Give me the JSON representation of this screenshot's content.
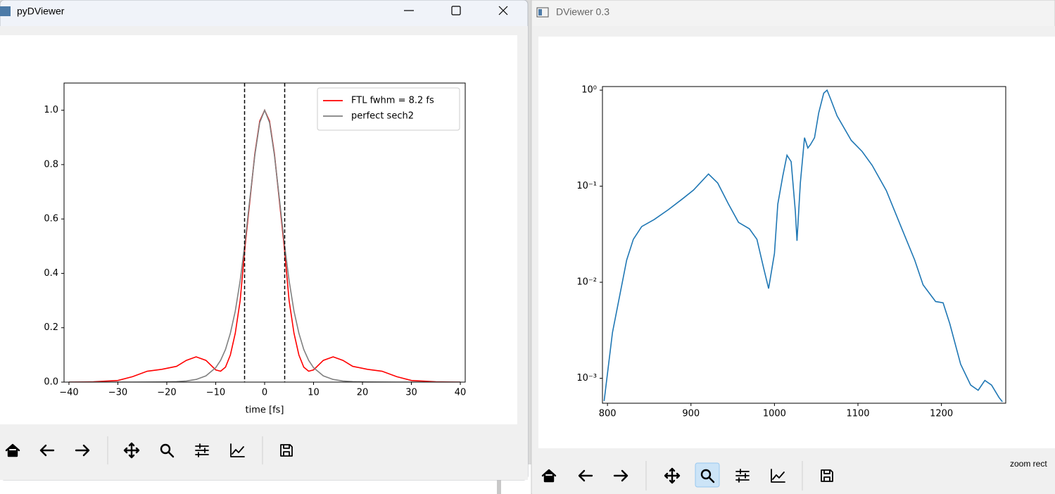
{
  "windows": [
    {
      "title": "pyDViewer"
    },
    {
      "title": "DViewer 0.3",
      "status": "zoom rect"
    }
  ],
  "chart_data": [
    {
      "type": "line",
      "xlabel": "time [fs]",
      "x": [
        -40,
        -35,
        -30,
        -27,
        -24,
        -21,
        -18,
        -16,
        -14,
        -12,
        -10,
        -9,
        -8,
        -7,
        -6,
        -5,
        -4,
        -3,
        -2,
        -1,
        0,
        1,
        2,
        3,
        4,
        5,
        6,
        7,
        8,
        9,
        10,
        12,
        14,
        16,
        18,
        21,
        24,
        27,
        30,
        35,
        40
      ],
      "series": [
        {
          "name": "FTL fwhm = 8.2 fs",
          "color": "#ff0000",
          "values": [
            0,
            0.001,
            0.006,
            0.02,
            0.04,
            0.047,
            0.058,
            0.08,
            0.093,
            0.08,
            0.045,
            0.04,
            0.055,
            0.1,
            0.18,
            0.3,
            0.5,
            0.67,
            0.84,
            0.96,
            1.0,
            0.96,
            0.84,
            0.67,
            0.5,
            0.3,
            0.18,
            0.1,
            0.055,
            0.04,
            0.045,
            0.08,
            0.093,
            0.08,
            0.058,
            0.047,
            0.04,
            0.02,
            0.006,
            0.001,
            0
          ]
        },
        {
          "name": "perfect sech2",
          "color": "#808080",
          "values": [
            0,
            0,
            0,
            0,
            0.0001,
            0.0005,
            0.0018,
            0.004,
            0.0098,
            0.023,
            0.053,
            0.08,
            0.12,
            0.18,
            0.261,
            0.373,
            0.515,
            0.677,
            0.835,
            0.955,
            1.0,
            0.955,
            0.835,
            0.677,
            0.515,
            0.373,
            0.261,
            0.18,
            0.12,
            0.08,
            0.053,
            0.023,
            0.0098,
            0.004,
            0.0018,
            0.0005,
            0.0001,
            0,
            0,
            0,
            0
          ]
        }
      ],
      "vlines": [
        -4.1,
        4.1
      ],
      "xlim": [
        -41,
        41
      ],
      "xticks": [
        {
          "value": -40,
          "label": "−40"
        },
        {
          "value": -30,
          "label": "−30"
        },
        {
          "value": -20,
          "label": "−20"
        },
        {
          "value": -10,
          "label": "−10"
        },
        0,
        10,
        20,
        30,
        40
      ],
      "ylim": [
        0,
        1.1
      ],
      "yticks": [
        {
          "value": 0,
          "label": "0.0"
        },
        0.2,
        0.4,
        0.6,
        0.8,
        {
          "value": 1,
          "label": "1.0"
        }
      ],
      "legend": "upper right"
    },
    {
      "type": "line",
      "yscale": "log",
      "x": [
        796,
        806,
        823,
        831,
        841,
        856,
        873,
        890,
        903,
        921,
        932,
        945,
        957,
        970,
        979,
        987,
        993,
        1000,
        1004,
        1010,
        1015,
        1020,
        1025,
        1027,
        1031,
        1036,
        1040,
        1043,
        1048,
        1053,
        1059,
        1063,
        1067,
        1075,
        1092,
        1105,
        1117,
        1134,
        1151,
        1168,
        1178,
        1193,
        1202,
        1210,
        1223,
        1235,
        1244,
        1252,
        1260,
        1269,
        1273
      ],
      "series": [
        {
          "color": "#1f77b4",
          "values": [
            0.00058,
            0.003,
            0.017,
            0.028,
            0.038,
            0.045,
            0.057,
            0.074,
            0.091,
            0.134,
            0.108,
            0.065,
            0.042,
            0.036,
            0.028,
            0.0141,
            0.0086,
            0.02,
            0.065,
            0.128,
            0.21,
            0.18,
            0.055,
            0.027,
            0.108,
            0.32,
            0.25,
            0.27,
            0.32,
            0.58,
            0.93,
            1.0,
            0.82,
            0.54,
            0.3,
            0.23,
            0.165,
            0.09,
            0.039,
            0.017,
            0.0094,
            0.0063,
            0.0061,
            0.0037,
            0.0014,
            0.00085,
            0.00075,
            0.00095,
            0.00085,
            0.00063,
            0.00057
          ]
        }
      ],
      "xlim": [
        794,
        1277
      ],
      "xticks": [
        800,
        900,
        1000,
        1100,
        1200
      ],
      "ylim": [
        0.00055,
        1.09
      ],
      "yticks": [
        {
          "value": 0.001,
          "label": "10⁻³"
        },
        {
          "value": 0.01,
          "label": "10⁻²"
        },
        {
          "value": 0.1,
          "label": "10⁻¹"
        },
        {
          "value": 1,
          "label": "10⁰"
        }
      ]
    }
  ]
}
